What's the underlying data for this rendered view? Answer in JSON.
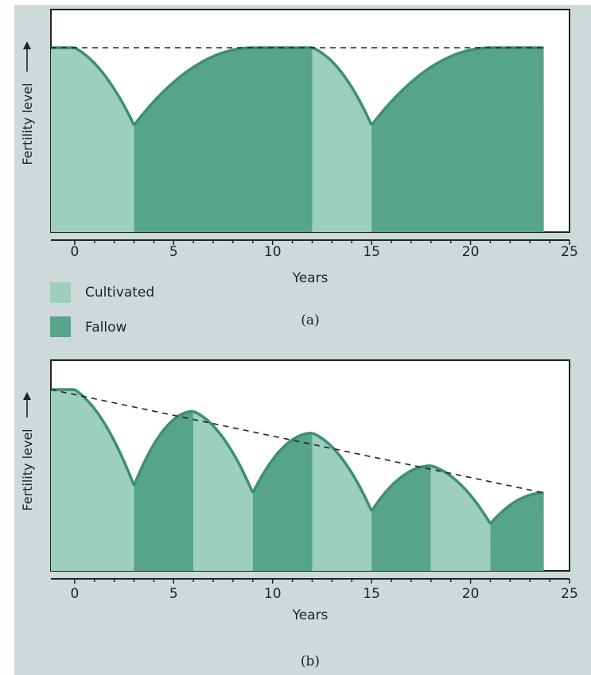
{
  "colors": {
    "cultivated": "#9ccfbe",
    "fallow": "#57a48c",
    "curve": "#3b8e78",
    "plot_bg": "#ffffff",
    "axis": "#1e2324"
  },
  "legend": {
    "cultivated_label": "Cultivated",
    "fallow_label": "Fallow"
  },
  "chart_data": [
    {
      "type": "area",
      "panel_label": "(a)",
      "xlabel": "Years",
      "ylabel": "Fertility level",
      "xlim": [
        -1.2,
        25
      ],
      "ylim": [
        0,
        1
      ],
      "x_ticks": [
        0,
        5,
        10,
        15,
        20,
        25
      ],
      "reference_line": {
        "style": "dashed",
        "points": [
          [
            -1.2,
            1.0
          ],
          [
            23.7,
            1.0
          ]
        ]
      },
      "phases": [
        {
          "kind": "cultivated",
          "x_start": -1.2,
          "x_end": 3.0,
          "peak_x": 0.0,
          "y_start": 1.0,
          "y_end": 0.58
        },
        {
          "kind": "fallow",
          "x_start": 3.0,
          "x_end": 12.0,
          "peak_x": 9.0,
          "y_start": 0.58,
          "y_end": 1.0
        },
        {
          "kind": "cultivated",
          "x_start": 12.0,
          "x_end": 15.0,
          "peak_x": 12.0,
          "y_start": 1.0,
          "y_end": 0.58
        },
        {
          "kind": "fallow",
          "x_start": 15.0,
          "x_end": 23.7,
          "peak_x": 21.0,
          "y_start": 0.58,
          "y_end": 1.0
        }
      ]
    },
    {
      "type": "area",
      "panel_label": "(b)",
      "xlabel": "Years",
      "ylabel": "Fertility level",
      "xlim": [
        -1.2,
        25
      ],
      "ylim": [
        0,
        1
      ],
      "x_ticks": [
        0,
        5,
        10,
        15,
        20,
        25
      ],
      "reference_line": {
        "style": "dashed",
        "points": [
          [
            -1.2,
            1.0
          ],
          [
            23.7,
            0.43
          ]
        ]
      },
      "phases": [
        {
          "kind": "cultivated",
          "x_start": -1.2,
          "x_end": 3.0,
          "peak_x": 0.0,
          "y_start": 1.0,
          "y_end": 0.47
        },
        {
          "kind": "fallow",
          "x_start": 3.0,
          "x_end": 6.0,
          "y_start": 0.47,
          "y_end": 0.88
        },
        {
          "kind": "cultivated",
          "x_start": 6.0,
          "x_end": 9.0,
          "y_start": 0.88,
          "y_end": 0.43
        },
        {
          "kind": "fallow",
          "x_start": 9.0,
          "x_end": 12.0,
          "y_start": 0.43,
          "y_end": 0.76
        },
        {
          "kind": "cultivated",
          "x_start": 12.0,
          "x_end": 15.0,
          "y_start": 0.76,
          "y_end": 0.33
        },
        {
          "kind": "fallow",
          "x_start": 15.0,
          "x_end": 18.0,
          "y_start": 0.33,
          "y_end": 0.58
        },
        {
          "kind": "cultivated",
          "x_start": 18.0,
          "x_end": 21.0,
          "y_start": 0.58,
          "y_end": 0.26
        },
        {
          "kind": "fallow",
          "x_start": 21.0,
          "x_end": 23.7,
          "y_start": 0.26,
          "y_end": 0.43
        }
      ]
    }
  ]
}
